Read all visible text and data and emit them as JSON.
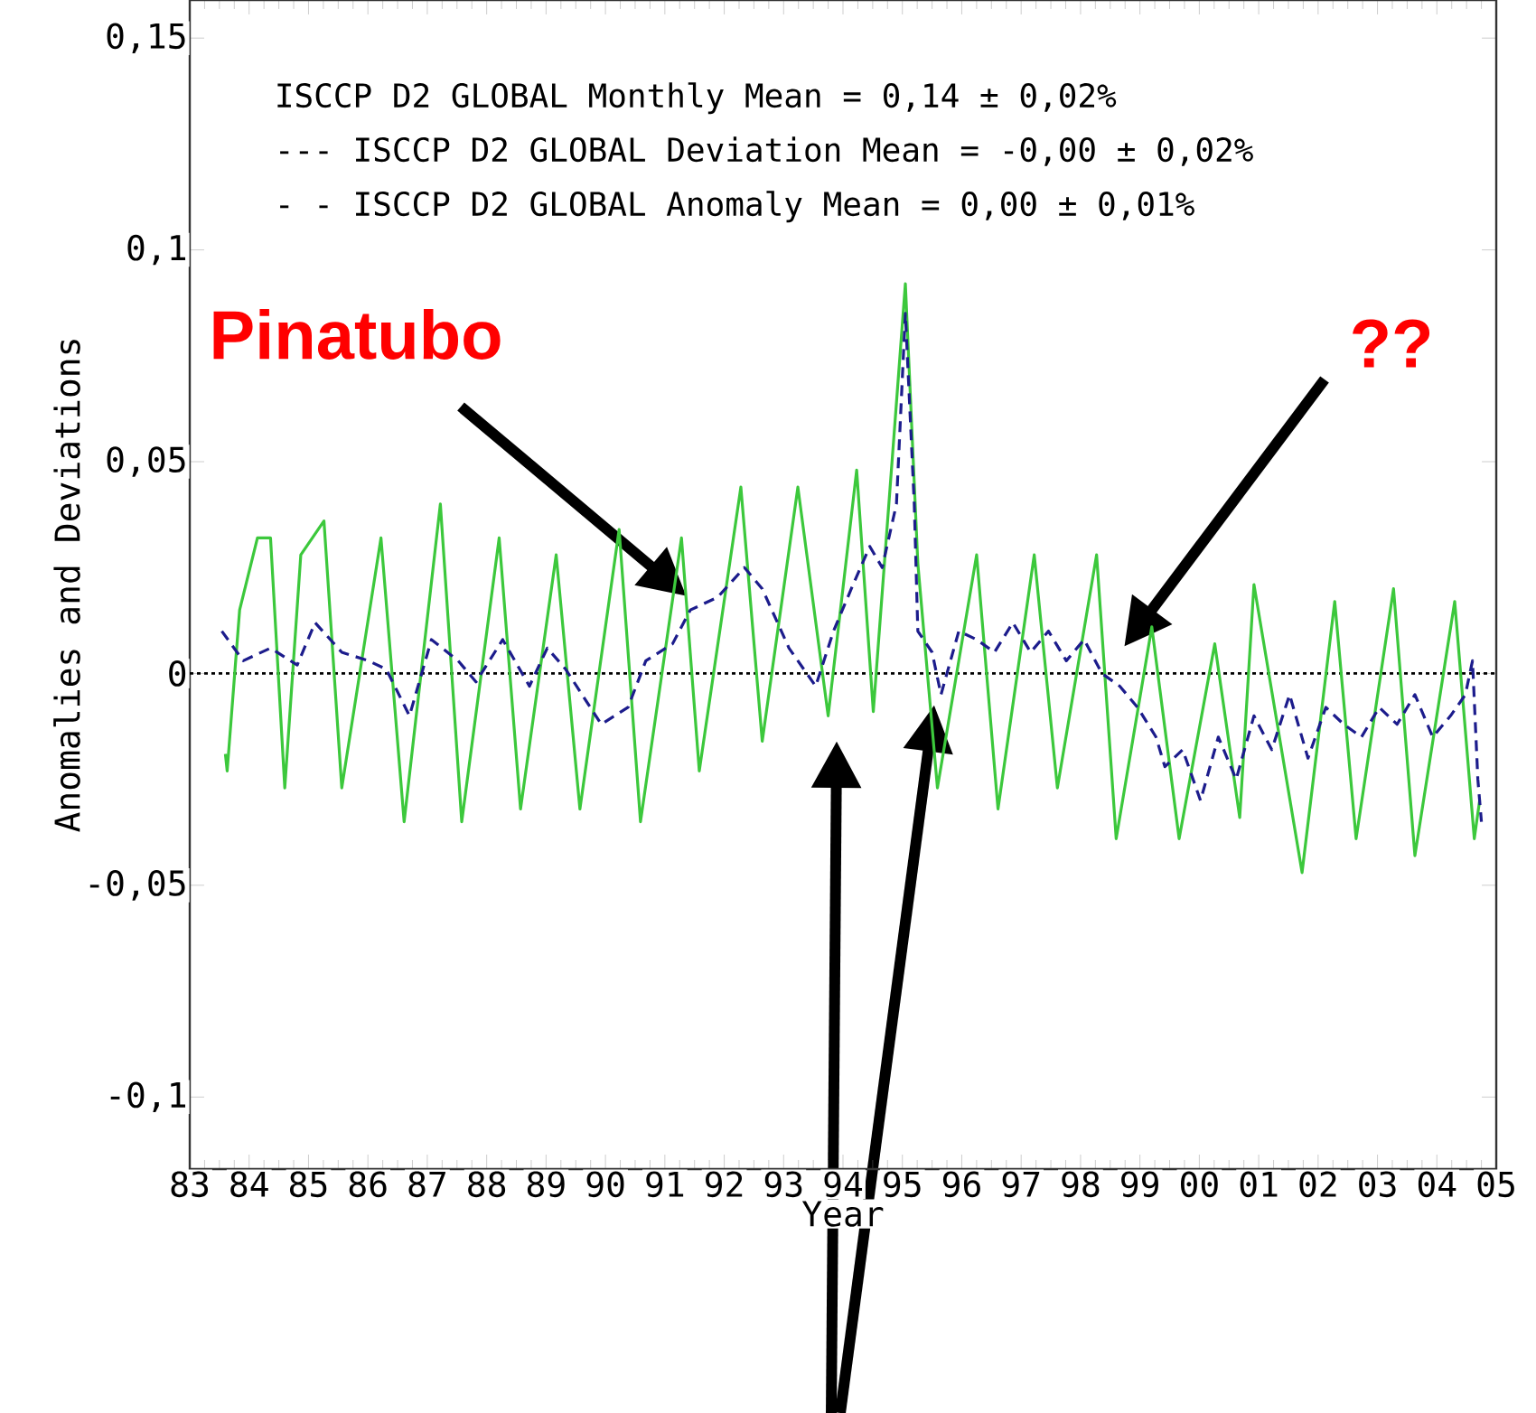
{
  "chart_data": {
    "type": "line",
    "xlabel": "Year",
    "ylabel": "Anomalies and Deviations",
    "xlim": [
      1983,
      2005
    ],
    "ylim": [
      -0.117,
      0.159
    ],
    "xticks": [
      {
        "value": 1983,
        "label": "83"
      },
      {
        "value": 1984,
        "label": "84"
      },
      {
        "value": 1985,
        "label": "85"
      },
      {
        "value": 1986,
        "label": "86"
      },
      {
        "value": 1987,
        "label": "87"
      },
      {
        "value": 1988,
        "label": "88"
      },
      {
        "value": 1989,
        "label": "89"
      },
      {
        "value": 1990,
        "label": "90"
      },
      {
        "value": 1991,
        "label": "91"
      },
      {
        "value": 1992,
        "label": "92"
      },
      {
        "value": 1993,
        "label": "93"
      },
      {
        "value": 1994,
        "label": "94"
      },
      {
        "value": 1995,
        "label": "95"
      },
      {
        "value": 1996,
        "label": "96"
      },
      {
        "value": 1997,
        "label": "97"
      },
      {
        "value": 1998,
        "label": "98"
      },
      {
        "value": 1999,
        "label": "99"
      },
      {
        "value": 2000,
        "label": "00"
      },
      {
        "value": 2001,
        "label": "01"
      },
      {
        "value": 2002,
        "label": "02"
      },
      {
        "value": 2003,
        "label": "03"
      },
      {
        "value": 2004,
        "label": "04"
      },
      {
        "value": 2005,
        "label": "05"
      }
    ],
    "yticks": [
      {
        "value": -0.1,
        "label": "-0,1"
      },
      {
        "value": -0.05,
        "label": "-0,05"
      },
      {
        "value": 0,
        "label": "0"
      },
      {
        "value": 0.05,
        "label": "0,05"
      },
      {
        "value": 0.1,
        "label": "0,1"
      },
      {
        "value": 0.15,
        "label": "0,15"
      }
    ],
    "marker": "none",
    "ref_lines": [
      {
        "axis": "y",
        "value": 0,
        "color": "#000000",
        "line_style": "dotted"
      }
    ],
    "series": [
      {
        "color": "#3cc83c",
        "line_style": "solid",
        "x": [
          1983.6,
          1983.63,
          1983.84,
          1984.14,
          1984.36,
          1984.6,
          1984.87,
          1985.26,
          1985.56,
          1986.22,
          1986.61,
          1987.22,
          1987.58,
          1988.21,
          1988.57,
          1989.17,
          1989.57,
          1990.23,
          1990.59,
          1991.28,
          1991.58,
          1992.28,
          1992.64,
          1993.24,
          1993.75,
          1994.23,
          1994.51,
          1995.05,
          1995.26,
          1995.59,
          1996.25,
          1996.61,
          1997.22,
          1997.61,
          1998.27,
          1998.6,
          1999.2,
          1999.66,
          2000.26,
          2000.68,
          2000.92,
          2001.73,
          2002.28,
          2002.64,
          2003.27,
          2003.63,
          2004.3,
          2004.63,
          2004.72
        ],
        "values": [
          -0.019,
          -0.023,
          0.015,
          0.032,
          0.032,
          -0.027,
          0.028,
          0.036,
          -0.027,
          0.032,
          -0.035,
          0.04,
          -0.035,
          0.032,
          -0.032,
          0.028,
          -0.032,
          0.034,
          -0.035,
          0.032,
          -0.023,
          0.044,
          -0.016,
          0.044,
          -0.01,
          0.048,
          -0.009,
          0.092,
          0.026,
          -0.027,
          0.028,
          -0.032,
          0.028,
          -0.027,
          0.028,
          -0.039,
          0.011,
          -0.039,
          0.007,
          -0.034,
          0.021,
          -0.047,
          0.017,
          -0.039,
          0.02,
          -0.043,
          0.017,
          -0.039,
          -0.03
        ]
      },
      {
        "color": "#1c1c8c",
        "line_style": "dashed",
        "x": [
          1983.54,
          1983.9,
          1984.36,
          1984.81,
          1985.11,
          1985.56,
          1986.01,
          1986.31,
          1986.7,
          1987.07,
          1987.52,
          1987.82,
          1988.27,
          1988.72,
          1989.02,
          1989.33,
          1989.93,
          1990.38,
          1990.68,
          1991.13,
          1991.43,
          1991.89,
          1992.34,
          1992.64,
          1993.09,
          1993.54,
          1993.84,
          1994.14,
          1994.45,
          1994.66,
          1994.9,
          1995.05,
          1995.2,
          1995.26,
          1995.5,
          1995.65,
          1995.95,
          1996.25,
          1996.55,
          1996.86,
          1997.16,
          1997.46,
          1997.76,
          1998.06,
          1998.36,
          1998.66,
          1998.96,
          1999.27,
          1999.42,
          1999.72,
          2000.02,
          2000.32,
          2000.62,
          2000.92,
          2001.22,
          2001.52,
          2001.83,
          2002.13,
          2002.43,
          2002.73,
          2003.03,
          2003.33,
          2003.63,
          2003.93,
          2004.23,
          2004.48,
          2004.6,
          2004.69,
          2004.75
        ],
        "values": [
          0.01,
          0.003,
          0.006,
          0.002,
          0.012,
          0.005,
          0.003,
          0.001,
          -0.01,
          0.008,
          0.003,
          -0.002,
          0.008,
          -0.003,
          0.006,
          0.001,
          -0.012,
          -0.008,
          0.003,
          0.007,
          0.015,
          0.018,
          0.025,
          0.02,
          0.006,
          -0.003,
          0.01,
          0.02,
          0.03,
          0.025,
          0.04,
          0.085,
          0.04,
          0.01,
          0.005,
          -0.005,
          0.01,
          0.008,
          0.005,
          0.012,
          0.005,
          0.01,
          0.003,
          0.008,
          0.0,
          -0.003,
          -0.008,
          -0.015,
          -0.022,
          -0.018,
          -0.03,
          -0.015,
          -0.025,
          -0.01,
          -0.018,
          -0.005,
          -0.02,
          -0.008,
          -0.012,
          -0.015,
          -0.008,
          -0.012,
          -0.005,
          -0.015,
          -0.01,
          -0.005,
          0.003,
          -0.025,
          -0.035
        ]
      }
    ],
    "annotations": [
      "ISCCP D2 GLOBAL Monthly Mean = 0,14 ± 0,02%",
      "--- ISCCP D2 GLOBAL Deviation Mean = -0,00 ± 0,02%",
      "- - ISCCP D2 GLOBAL Anomaly Mean = 0,00 ± 0,01%",
      "Pinatubo",
      "??"
    ]
  }
}
